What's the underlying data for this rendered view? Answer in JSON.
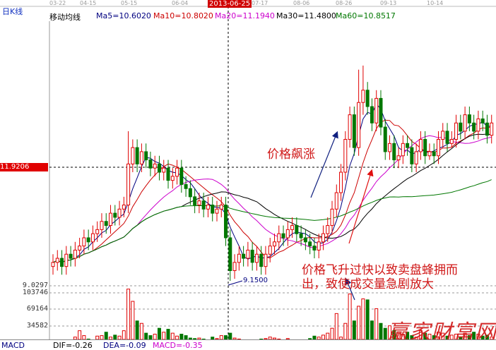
{
  "header": {
    "period_label": "日K线",
    "indicator_label": "移动均线",
    "ma": [
      {
        "label": "Ma5=10.6020",
        "color": "#000080"
      },
      {
        "label": "Ma10=10.8020",
        "color": "#cc0000"
      },
      {
        "label": "Ma20=11.1940",
        "color": "#cc00cc"
      },
      {
        "label": "Ma30=11.4800",
        "color": "#000000"
      },
      {
        "label": "Ma60=10.8517",
        "color": "#007700"
      }
    ]
  },
  "date_axis": [
    "03-22",
    "04-15",
    "05-15",
    "06-04",
    "07-17",
    "08-06",
    "08-26",
    "09-13",
    "10-14"
  ],
  "crosshair": {
    "date": "2013-06-25",
    "price": "11.9206",
    "low_marker": "9.1500"
  },
  "price_axis": {
    "bottom_label": "9.0297"
  },
  "volume_axis": [
    "103746",
    "69164",
    "34582"
  ],
  "annotations": {
    "surge": "价格飙涨",
    "explain_line1": "价格飞升过快以致卖盘蜂拥而",
    "explain_line2": "出，致使成交量急剧放大"
  },
  "watermark": "赢家财富网",
  "footer": {
    "name": "MACD",
    "dif": "DIF=-0.26",
    "dea": "DEA=-0.09",
    "macd": "MACD=-0.35"
  },
  "colors": {
    "up": "#e00000",
    "down": "#007700",
    "ma5": "#000080",
    "ma10": "#cc0000",
    "ma20": "#cc00cc",
    "ma30": "#000000",
    "ma60": "#007700"
  },
  "chart_data": {
    "type": "candlestick",
    "price_reference": [
      9.0297,
      11.9206
    ],
    "close": [
      9.6,
      9.7,
      9.5,
      9.8,
      9.7,
      9.9,
      10.0,
      10.2,
      10.1,
      10.3,
      10.4,
      10.6,
      10.5,
      10.8,
      10.7,
      10.9,
      11.0,
      12.0,
      12.4,
      12.0,
      12.3,
      12.1,
      11.9,
      12.0,
      11.8,
      11.9,
      11.6,
      11.7,
      11.9,
      11.5,
      11.4,
      11.2,
      11.0,
      11.1,
      10.9,
      11.0,
      10.8,
      10.9,
      11.0,
      10.2,
      9.4,
      9.6,
      9.8,
      9.7,
      9.9,
      9.6,
      9.8,
      9.5,
      9.8,
      10.0,
      10.1,
      10.3,
      10.2,
      10.4,
      10.5,
      10.3,
      10.2,
      10.1,
      10.0,
      9.9,
      10.1,
      10.3,
      10.5,
      10.9,
      11.3,
      11.8,
      12.6,
      13.2,
      12.4,
      13.5,
      13.8,
      13.4,
      13.0,
      13.6,
      12.9,
      12.3,
      12.5,
      12.1,
      12.2,
      12.5,
      12.4,
      12.0,
      12.3,
      12.6,
      12.2,
      12.3,
      12.2,
      12.6,
      12.8,
      12.5,
      12.6,
      13.0,
      12.8,
      13.2,
      13.0,
      12.8,
      13.1,
      13.0,
      12.7,
      13.0
    ],
    "open": [
      9.5,
      9.6,
      9.7,
      9.5,
      9.8,
      9.7,
      9.9,
      10.0,
      10.2,
      10.1,
      10.3,
      10.4,
      10.6,
      10.5,
      10.8,
      10.7,
      10.9,
      11.0,
      12.0,
      12.4,
      12.0,
      12.3,
      12.1,
      11.9,
      12.0,
      11.8,
      11.9,
      11.6,
      11.7,
      11.9,
      11.5,
      11.4,
      11.2,
      11.0,
      11.1,
      10.9,
      11.0,
      10.8,
      10.9,
      11.0,
      10.2,
      9.4,
      9.6,
      9.8,
      9.7,
      9.9,
      9.6,
      9.8,
      9.5,
      9.8,
      10.0,
      10.1,
      10.3,
      10.2,
      10.4,
      10.5,
      10.3,
      10.2,
      10.1,
      10.0,
      9.9,
      10.1,
      10.3,
      10.5,
      10.9,
      11.3,
      11.8,
      12.6,
      13.2,
      12.4,
      13.5,
      13.8,
      13.4,
      13.0,
      13.6,
      12.9,
      12.3,
      12.5,
      12.1,
      12.2,
      12.5,
      12.4,
      12.0,
      12.3,
      12.6,
      12.2,
      12.3,
      12.2,
      12.6,
      12.8,
      12.5,
      12.6,
      13.0,
      12.8,
      13.2,
      13.0,
      12.8,
      13.1,
      13.0,
      12.7
    ],
    "high": [
      9.8,
      9.9,
      9.9,
      10.0,
      10.0,
      10.1,
      10.2,
      10.4,
      10.4,
      10.5,
      10.6,
      10.8,
      10.8,
      11.0,
      11.0,
      11.1,
      11.2,
      12.8,
      12.6,
      12.6,
      12.5,
      12.5,
      12.3,
      12.2,
      12.2,
      12.1,
      12.1,
      11.9,
      12.1,
      12.1,
      11.7,
      11.6,
      11.4,
      11.3,
      11.3,
      11.2,
      11.2,
      11.1,
      11.2,
      11.2,
      10.4,
      9.8,
      10.0,
      10.0,
      10.1,
      10.1,
      10.0,
      10.0,
      10.0,
      10.2,
      10.3,
      10.5,
      10.5,
      10.6,
      10.7,
      10.7,
      10.5,
      10.4,
      10.3,
      10.2,
      10.3,
      10.5,
      10.7,
      11.1,
      11.5,
      12.0,
      12.8,
      13.4,
      13.4,
      14.3,
      14.4,
      14.0,
      13.6,
      13.8,
      13.8,
      13.1,
      12.7,
      12.7,
      12.4,
      12.7,
      12.7,
      12.6,
      12.5,
      12.8,
      12.8,
      12.5,
      12.5,
      12.8,
      13.0,
      13.0,
      12.8,
      13.2,
      13.2,
      13.4,
      13.4,
      13.2,
      13.3,
      13.3,
      13.2,
      13.2
    ],
    "low": [
      9.3,
      9.4,
      9.3,
      9.3,
      9.5,
      9.5,
      9.7,
      9.8,
      9.9,
      9.9,
      10.1,
      10.2,
      10.3,
      10.3,
      10.5,
      10.5,
      10.7,
      10.8,
      11.8,
      11.8,
      11.8,
      11.9,
      11.7,
      11.7,
      11.6,
      11.6,
      11.4,
      11.4,
      11.5,
      11.3,
      11.2,
      11.0,
      10.8,
      10.8,
      10.7,
      10.7,
      10.6,
      10.6,
      10.7,
      10.0,
      9.15,
      9.2,
      9.4,
      9.5,
      9.5,
      9.4,
      9.4,
      9.3,
      9.3,
      9.6,
      9.8,
      9.9,
      10.0,
      10.0,
      10.2,
      10.1,
      10.0,
      9.9,
      9.8,
      9.7,
      9.7,
      9.9,
      10.1,
      10.3,
      10.7,
      11.1,
      11.6,
      12.4,
      12.2,
      12.2,
      13.2,
      13.2,
      12.8,
      12.8,
      12.7,
      12.1,
      12.1,
      11.9,
      11.9,
      12.0,
      12.2,
      11.8,
      11.8,
      12.1,
      12.0,
      12.1,
      12.0,
      12.0,
      12.4,
      12.3,
      12.4,
      12.4,
      12.6,
      12.6,
      12.8,
      12.6,
      12.6,
      12.8,
      12.5,
      12.5
    ],
    "volume": [
      6000,
      5000,
      7000,
      6000,
      5000,
      12000,
      25000,
      15000,
      8000,
      6000,
      14000,
      15000,
      22000,
      12000,
      16000,
      14000,
      25000,
      110000,
      85000,
      45000,
      40000,
      20000,
      15000,
      18000,
      30000,
      22000,
      28000,
      20000,
      14000,
      18000,
      15000,
      10000,
      9000,
      10000,
      8000,
      7000,
      12000,
      9000,
      15000,
      15000,
      20000,
      10000,
      8000,
      6000,
      7000,
      6000,
      5000,
      8000,
      9000,
      12000,
      10000,
      8000,
      7000,
      9000,
      6000,
      5000,
      4000,
      6000,
      9000,
      14000,
      12000,
      16000,
      20000,
      30000,
      60000,
      12000,
      40000,
      100000,
      45000,
      75000,
      90000,
      88000,
      45000,
      70000,
      40000,
      30000,
      35000,
      25000,
      20000,
      18000,
      22000,
      15000,
      12000,
      25000,
      20000,
      18000,
      15000,
      22000,
      20000,
      14000,
      16000,
      18000,
      12000,
      20000,
      15000,
      22000,
      18000,
      14000,
      16000,
      12000
    ],
    "moving_averages": [
      5,
      10,
      20,
      30,
      60
    ]
  }
}
